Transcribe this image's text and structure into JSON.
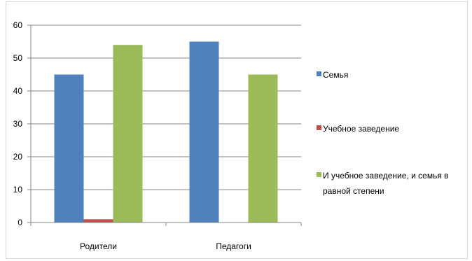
{
  "chart_data": {
    "type": "bar",
    "categories": [
      "Родители",
      "Педагоги"
    ],
    "series": [
      {
        "name": "Семья",
        "values": [
          45,
          55
        ],
        "color": "#4f81bd"
      },
      {
        "name": "Учебное заведение",
        "values": [
          1,
          0
        ],
        "color": "#c0504d"
      },
      {
        "name": "И учебное заведение, и семья в равной степени",
        "values": [
          54,
          45
        ],
        "color": "#9bbb59"
      }
    ],
    "ylim": [
      0,
      60
    ],
    "yticks": [
      0,
      10,
      20,
      30,
      40,
      50,
      60
    ],
    "title": "",
    "xlabel": "",
    "ylabel": "",
    "grid": true,
    "legend_position": "right",
    "gridline_color": "#868686"
  }
}
